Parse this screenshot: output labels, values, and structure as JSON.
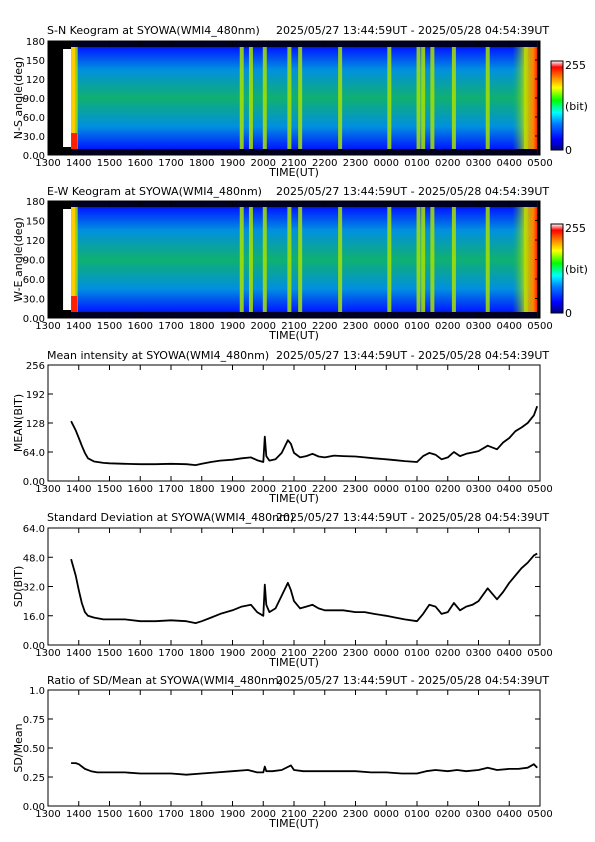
{
  "figure": {
    "station": "SYOWA",
    "camera": "WMI4_480nm",
    "time_range": "2025/05/27 13:44:59UT - 2025/05/28 04:54:39UT"
  },
  "colors": {
    "background": "#ffffff",
    "line": "#000000",
    "keogram_colormap": [
      "#000080",
      "#0000ff",
      "#0080ff",
      "#00ffff",
      "#00ff00",
      "#ffff00",
      "#ff8000",
      "#ff0000",
      "#ffffff"
    ]
  },
  "chart_data": [
    {
      "id": "sn_keogram",
      "type": "heatmap",
      "title": "S-N Keogram at SYOWA(WMI4_480nm)",
      "time_label": "2025/05/27 13:44:59UT - 2025/05/28 04:54:39UT",
      "xlabel": "TIME(UT)",
      "ylabel": "N-S angle(deg)",
      "x_ticks": [
        "1300",
        "1400",
        "1500",
        "1600",
        "1700",
        "1800",
        "1900",
        "2000",
        "2100",
        "2200",
        "2300",
        "0000",
        "0100",
        "0200",
        "0300",
        "0400",
        "0500"
      ],
      "y_ticks": [
        "0.00",
        "30.0",
        "60.0",
        "90.0",
        "120",
        "150",
        "180"
      ],
      "ylim": [
        0,
        180
      ],
      "data_start_hour": 13.75,
      "data_end_hour": 28.91,
      "colorbar": {
        "min_label": "0",
        "max_label": "255",
        "unit_label": "(bit)"
      },
      "bright_bands_hour": [
        13.9,
        19.3,
        19.6,
        20.05,
        20.85,
        21.2,
        22.5,
        24.1,
        25.05,
        25.2,
        25.5,
        26.2,
        27.3,
        28.55,
        28.8
      ]
    },
    {
      "id": "ew_keogram",
      "type": "heatmap",
      "title": "E-W Keogram at SYOWA(WMI4_480nm)",
      "time_label": "2025/05/27 13:44:59UT - 2025/05/28 04:54:39UT",
      "xlabel": "TIME(UT)",
      "ylabel": "W-E angle(deg)",
      "x_ticks": [
        "1300",
        "1400",
        "1500",
        "1600",
        "1700",
        "1800",
        "1900",
        "2000",
        "2100",
        "2200",
        "2300",
        "0000",
        "0100",
        "0200",
        "0300",
        "0400",
        "0500"
      ],
      "y_ticks": [
        "0.00",
        "30.0",
        "60.0",
        "90.0",
        "120",
        "150",
        "180"
      ],
      "ylim": [
        0,
        180
      ],
      "data_start_hour": 13.75,
      "data_end_hour": 28.91,
      "colorbar": {
        "min_label": "0",
        "max_label": "255",
        "unit_label": "(bit)"
      },
      "bright_bands_hour": [
        13.9,
        19.3,
        19.6,
        20.05,
        20.85,
        21.2,
        22.5,
        24.1,
        25.05,
        25.2,
        25.5,
        26.2,
        27.3,
        28.55,
        28.8
      ]
    },
    {
      "id": "mean_intensity",
      "type": "line",
      "title": "Mean intensity at SYOWA(WMI4_480nm)",
      "time_label": "2025/05/27 13:44:59UT - 2025/05/28 04:54:39UT",
      "xlabel": "TIME(UT)",
      "ylabel": "MEAN(BIT)",
      "x_ticks": [
        "1300",
        "1400",
        "1500",
        "1600",
        "1700",
        "1800",
        "1900",
        "2000",
        "2100",
        "2200",
        "2300",
        "0000",
        "0100",
        "0200",
        "0300",
        "0400",
        "0500"
      ],
      "y_ticks": [
        "0.00",
        "64.0",
        "128",
        "192",
        "256"
      ],
      "ylim": [
        0,
        256
      ],
      "series": [
        {
          "x": [
            13.75,
            13.9,
            14.0,
            14.1,
            14.2,
            14.3,
            14.5,
            14.8,
            15.0,
            15.5,
            16.0,
            16.5,
            17.0,
            17.5,
            17.8,
            18.0,
            18.3,
            18.6,
            19.0,
            19.3,
            19.6,
            19.8,
            20.0,
            20.05,
            20.1,
            20.2,
            20.4,
            20.6,
            20.8,
            20.9,
            21.0,
            21.2,
            21.4,
            21.6,
            21.8,
            22.0,
            22.3,
            22.6,
            23.0,
            23.3,
            23.6,
            24.0,
            24.3,
            24.6,
            25.0,
            25.2,
            25.4,
            25.6,
            25.8,
            26.0,
            26.2,
            26.4,
            26.6,
            26.8,
            27.0,
            27.3,
            27.6,
            27.8,
            28.0,
            28.2,
            28.4,
            28.6,
            28.8,
            28.91
          ],
          "y": [
            132,
            112,
            95,
            78,
            62,
            50,
            43,
            40,
            39,
            38,
            37,
            37,
            38,
            37,
            35,
            38,
            42,
            45,
            47,
            50,
            52,
            46,
            42,
            98,
            55,
            45,
            48,
            62,
            90,
            82,
            62,
            52,
            55,
            60,
            54,
            52,
            56,
            55,
            54,
            52,
            50,
            48,
            46,
            44,
            42,
            55,
            62,
            58,
            48,
            52,
            64,
            55,
            60,
            63,
            66,
            78,
            70,
            85,
            95,
            110,
            118,
            128,
            145,
            165
          ]
        }
      ]
    },
    {
      "id": "standard_deviation",
      "type": "line",
      "title": "Standard Deviation at SYOWA(WMI4_480nm)",
      "time_label": "2025/05/27 13:44:59UT - 2025/05/28 04:54:39UT",
      "xlabel": "TIME(UT)",
      "ylabel": "SD(BIT)",
      "x_ticks": [
        "1300",
        "1400",
        "1500",
        "1600",
        "1700",
        "1800",
        "1900",
        "2000",
        "2100",
        "2200",
        "2300",
        "0000",
        "0100",
        "0200",
        "0300",
        "0400",
        "0500"
      ],
      "y_ticks": [
        "0.00",
        "16.0",
        "32.0",
        "48.0",
        "64.0"
      ],
      "ylim": [
        0,
        64
      ],
      "series": [
        {
          "x": [
            13.75,
            13.9,
            14.0,
            14.1,
            14.2,
            14.3,
            14.5,
            14.8,
            15.0,
            15.5,
            16.0,
            16.5,
            17.0,
            17.5,
            17.8,
            18.0,
            18.3,
            18.6,
            19.0,
            19.3,
            19.6,
            19.8,
            20.0,
            20.05,
            20.1,
            20.2,
            20.4,
            20.6,
            20.8,
            20.9,
            21.0,
            21.2,
            21.4,
            21.6,
            21.8,
            22.0,
            22.3,
            22.6,
            23.0,
            23.3,
            23.6,
            24.0,
            24.3,
            24.6,
            25.0,
            25.2,
            25.4,
            25.6,
            25.8,
            26.0,
            26.2,
            26.4,
            26.6,
            26.8,
            27.0,
            27.3,
            27.6,
            27.8,
            28.0,
            28.2,
            28.4,
            28.6,
            28.8,
            28.91
          ],
          "y": [
            47,
            38,
            30,
            23,
            18,
            16,
            15,
            14,
            14,
            14,
            13,
            13,
            13.5,
            13,
            12,
            13,
            15,
            17,
            19,
            21,
            22,
            18,
            16,
            33,
            22,
            18,
            20,
            27,
            34,
            30,
            24,
            20,
            21,
            22,
            20,
            19,
            19,
            19,
            18,
            18,
            17,
            16,
            15,
            14,
            13,
            17,
            22,
            21,
            17,
            18,
            23,
            19,
            21,
            22,
            24,
            31,
            25,
            29,
            34,
            38,
            42,
            45,
            49,
            50
          ]
        }
      ]
    },
    {
      "id": "ratio_sd_mean",
      "type": "line",
      "title": "Ratio of SD/Mean at SYOWA(WMI4_480nm)",
      "time_label": "2025/05/27 13:44:59UT - 2025/05/28 04:54:39UT",
      "xlabel": "TIME(UT)",
      "ylabel": "SD/Mean",
      "x_ticks": [
        "1300",
        "1400",
        "1500",
        "1600",
        "1700",
        "1800",
        "1900",
        "2000",
        "2100",
        "2200",
        "2300",
        "0000",
        "0100",
        "0200",
        "0300",
        "0400",
        "0500"
      ],
      "y_ticks": [
        "0.00",
        "0.25",
        "0.50",
        "0.75",
        "1.0"
      ],
      "ylim": [
        0,
        1.0
      ],
      "series": [
        {
          "x": [
            13.75,
            13.9,
            14.0,
            14.2,
            14.4,
            14.6,
            15.0,
            15.5,
            16.0,
            16.5,
            17.0,
            17.5,
            18.0,
            18.5,
            19.0,
            19.5,
            19.8,
            20.0,
            20.05,
            20.1,
            20.3,
            20.6,
            20.9,
            21.0,
            21.3,
            21.6,
            22.0,
            22.5,
            23.0,
            23.5,
            24.0,
            24.5,
            25.0,
            25.3,
            25.6,
            26.0,
            26.3,
            26.6,
            27.0,
            27.3,
            27.6,
            28.0,
            28.3,
            28.6,
            28.8,
            28.91
          ],
          "y": [
            0.37,
            0.37,
            0.36,
            0.32,
            0.3,
            0.29,
            0.29,
            0.29,
            0.28,
            0.28,
            0.28,
            0.27,
            0.28,
            0.29,
            0.3,
            0.31,
            0.29,
            0.29,
            0.34,
            0.3,
            0.3,
            0.31,
            0.35,
            0.31,
            0.3,
            0.3,
            0.3,
            0.3,
            0.3,
            0.29,
            0.29,
            0.28,
            0.28,
            0.3,
            0.31,
            0.3,
            0.31,
            0.3,
            0.31,
            0.33,
            0.31,
            0.32,
            0.32,
            0.33,
            0.36,
            0.33
          ]
        }
      ]
    }
  ]
}
